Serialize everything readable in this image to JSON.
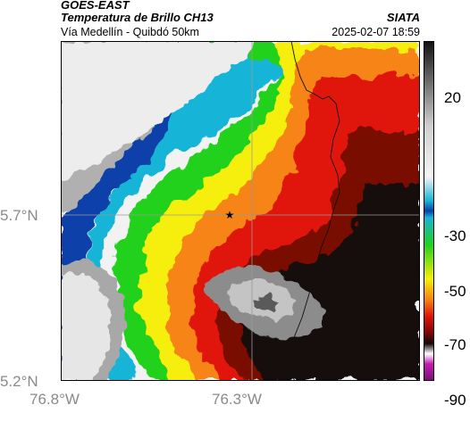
{
  "header": {
    "satellite": "GOES-EAST",
    "product": "Temperatura de Brillo CH13",
    "region": "Vía Medellín - Quibdó 50km",
    "agency": "SIATA",
    "datetime": "2025-02-07 18:59"
  },
  "map": {
    "lat_labels": [
      "5.7°N",
      "5.2°N"
    ],
    "lon_labels": [
      "76.8°W",
      "76.3°W"
    ],
    "marker_icon": "star-icon"
  },
  "colorbar": {
    "tick_labels": [
      "20",
      "-30",
      "-50",
      "-70",
      "-90"
    ],
    "colors": {
      "white": "#f2f2f2",
      "gray": "#8c8c8c",
      "blue": "#0a3fa8",
      "cyan": "#19b4d6",
      "green": "#22d11f",
      "yellow": "#f6ef0a",
      "orange": "#f78412",
      "red": "#e0150b",
      "darkred": "#780706",
      "black": "#120808",
      "magenta": "#c21cb3"
    }
  }
}
